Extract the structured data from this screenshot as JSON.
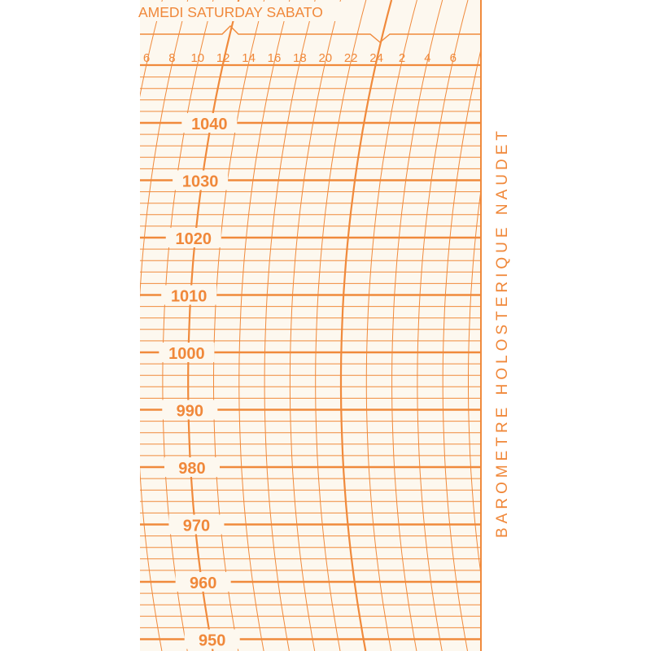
{
  "chart_paper": {
    "day_label": "AMEDI SATURDAY SABATO",
    "hour_labels": [
      "6",
      "8",
      "10",
      "12",
      "14",
      "16",
      "18",
      "20",
      "22",
      "24",
      "2",
      "4",
      "6"
    ],
    "pressure_labels": [
      "1040",
      "1030",
      "1020",
      "1010",
      "1000",
      "990",
      "980",
      "970",
      "960",
      "950"
    ],
    "brand_text": "BAROMETRE HOLOSTERIQUE NAUDET",
    "ink_color": "#f08a3c",
    "paper_color": "#fdf8ef"
  }
}
